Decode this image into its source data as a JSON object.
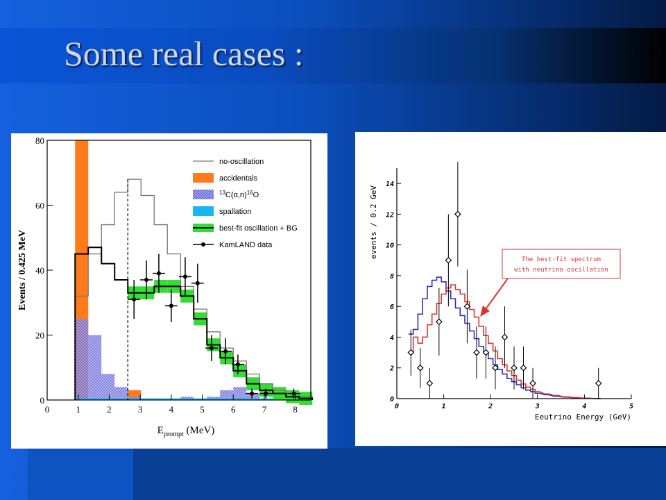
{
  "slide": {
    "title": "Some real cases :"
  },
  "colors": {
    "accidentals": "#ff7a1a",
    "c13": "#6a6ae0",
    "spallation": "#1ab6f0",
    "bestfit": "#33dd33",
    "blue_curve": "#3030b0",
    "red_curve": "#e03030",
    "annotation": "#e03030"
  },
  "chart_data": [
    {
      "type": "bar",
      "xlabel_main": "E",
      "xlabel_sub": "prompt",
      "xlabel_unit": "(MeV)",
      "ylabel": "Events / 0.425 MeV",
      "xlim": [
        0,
        8.5
      ],
      "ylim": [
        0,
        80
      ],
      "x_ticks": [
        0,
        1,
        2,
        3,
        4,
        5,
        6,
        7,
        8
      ],
      "y_ticks": [
        0,
        20,
        40,
        60,
        80
      ],
      "threshold_line_x": 2.6,
      "bin_edges": [
        0.9,
        1.325,
        1.75,
        2.175,
        2.6,
        3.025,
        3.45,
        3.875,
        4.3,
        4.725,
        5.15,
        5.575,
        6.0,
        6.425,
        6.85,
        7.275,
        7.7,
        8.125,
        8.55
      ],
      "legend": {
        "position": "top-right",
        "items": [
          {
            "label": "no-oscillation",
            "key": "no_oscillation"
          },
          {
            "label": "accidentals",
            "key": "accidentals"
          },
          {
            "label_super_pre": "13",
            "label_main": "C(α,n)",
            "label_super_post": "16",
            "label_end": "O",
            "key": "c13"
          },
          {
            "label": "spallation",
            "key": "spallation"
          },
          {
            "label": "best-fit oscillation + BG",
            "key": "bestfit"
          },
          {
            "label": "KamLAND data",
            "key": "data"
          }
        ]
      },
      "series": {
        "no_oscillation": [
          32,
          45,
          54,
          64,
          68,
          63,
          54,
          45,
          35,
          28,
          21,
          16,
          12,
          8,
          5,
          3,
          2,
          1
        ],
        "accidentals": [
          80,
          0,
          0,
          0,
          3,
          0,
          0,
          0,
          0,
          0,
          0,
          0,
          0,
          0,
          0,
          0,
          0,
          0
        ],
        "c13": [
          25,
          20,
          8,
          4,
          1,
          0,
          0,
          0,
          1,
          0,
          1,
          3,
          4,
          2,
          0,
          0,
          0,
          0
        ],
        "spallation": [
          0.5,
          0.5,
          0.5,
          0.5,
          0.5,
          0.5,
          0.5,
          0.5,
          0.5,
          0.5,
          0.5,
          0.5,
          0.5,
          0.5,
          0.5,
          0.5,
          0.5,
          0.5
        ],
        "bestfit": [
          45,
          47,
          42,
          37,
          33,
          33,
          35,
          35,
          32,
          25,
          17,
          13,
          9,
          5,
          3,
          2,
          1,
          0.5
        ],
        "data": [
          {
            "x": 2.8,
            "y": 31,
            "err": 6
          },
          {
            "x": 3.2,
            "y": 37,
            "err": 6
          },
          {
            "x": 3.6,
            "y": 39,
            "err": 6
          },
          {
            "x": 4.0,
            "y": 29,
            "err": 5
          },
          {
            "x": 4.45,
            "y": 38,
            "err": 6
          },
          {
            "x": 4.85,
            "y": 36,
            "err": 6
          },
          {
            "x": 5.3,
            "y": 16,
            "err": 4
          },
          {
            "x": 5.75,
            "y": 15,
            "err": 4
          },
          {
            "x": 6.15,
            "y": 11,
            "err": 3
          },
          {
            "x": 6.6,
            "y": 2,
            "err": 1.5
          },
          {
            "x": 7.05,
            "y": 2,
            "err": 1.5
          },
          {
            "x": 7.95,
            "y": 2,
            "err": 1.5
          }
        ]
      }
    },
    {
      "type": "line",
      "xlabel": "Eeutrino Energy (GeV)",
      "ylabel": "events / 0.2 GeV",
      "xlim": [
        0,
        5
      ],
      "ylim": [
        0,
        15
      ],
      "x_ticks": [
        0,
        1,
        2,
        3,
        4,
        5
      ],
      "y_ticks": [
        0,
        2,
        4,
        6,
        8,
        10,
        12,
        14
      ],
      "annotation": [
        "The best-fit spectrum",
        "with neutrino oscillation"
      ],
      "series": [
        {
          "key": "blue",
          "x": [
            0.3,
            0.4,
            0.5,
            0.6,
            0.7,
            0.8,
            0.9,
            1.0,
            1.1,
            1.2,
            1.3,
            1.4,
            1.5,
            1.6,
            1.7,
            1.8,
            1.9,
            2.0,
            2.1,
            2.2,
            2.3,
            2.4,
            2.5,
            2.6,
            2.7,
            2.8,
            2.9,
            3.0,
            3.2,
            3.4,
            3.6,
            3.8,
            4.0,
            4.3
          ],
          "y": [
            4.2,
            4.5,
            5.5,
            6.5,
            7.3,
            7.7,
            7.9,
            7.6,
            7.0,
            6.5,
            5.9,
            5.4,
            4.9,
            4.4,
            3.9,
            3.4,
            3.0,
            2.6,
            2.2,
            1.9,
            1.6,
            1.3,
            1.1,
            0.9,
            0.7,
            0.55,
            0.45,
            0.35,
            0.25,
            0.15,
            0.1,
            0.06,
            0.03,
            0
          ]
        },
        {
          "key": "red",
          "x": [
            0.3,
            0.4,
            0.5,
            0.6,
            0.7,
            0.8,
            0.9,
            1.0,
            1.1,
            1.2,
            1.3,
            1.4,
            1.5,
            1.6,
            1.7,
            1.8,
            1.9,
            2.0,
            2.1,
            2.2,
            2.3,
            2.4,
            2.5,
            2.6,
            2.7,
            2.8,
            2.9,
            3.0,
            3.2,
            3.4,
            3.6,
            3.8,
            4.0,
            4.3
          ],
          "y": [
            3.0,
            4.0,
            3.6,
            4.0,
            4.8,
            5.5,
            6.2,
            6.8,
            7.2,
            7.4,
            7.1,
            6.8,
            6.3,
            5.8,
            5.3,
            4.7,
            4.1,
            3.6,
            3.1,
            2.6,
            2.2,
            1.8,
            1.5,
            1.2,
            0.95,
            0.75,
            0.6,
            0.45,
            0.3,
            0.2,
            0.12,
            0.07,
            0.03,
            0
          ]
        }
      ],
      "data_points": [
        {
          "x": 0.3,
          "y": 3,
          "err": 1.5
        },
        {
          "x": 0.5,
          "y": 2,
          "err": 1.3
        },
        {
          "x": 0.7,
          "y": 1,
          "err": 1.0
        },
        {
          "x": 0.9,
          "y": 5,
          "err": 2.2
        },
        {
          "x": 1.1,
          "y": 9,
          "err": 3.0
        },
        {
          "x": 1.3,
          "y": 12,
          "err": 3.4
        },
        {
          "x": 1.5,
          "y": 6,
          "err": 2.4
        },
        {
          "x": 1.7,
          "y": 3,
          "err": 1.7
        },
        {
          "x": 1.9,
          "y": 3,
          "err": 1.7
        },
        {
          "x": 2.1,
          "y": 2,
          "err": 1.4
        },
        {
          "x": 2.3,
          "y": 4,
          "err": 2.0
        },
        {
          "x": 2.5,
          "y": 2,
          "err": 1.4
        },
        {
          "x": 2.7,
          "y": 2,
          "err": 1.4
        },
        {
          "x": 2.9,
          "y": 1,
          "err": 1.0
        },
        {
          "x": 4.3,
          "y": 1,
          "err": 1.0
        }
      ]
    }
  ]
}
